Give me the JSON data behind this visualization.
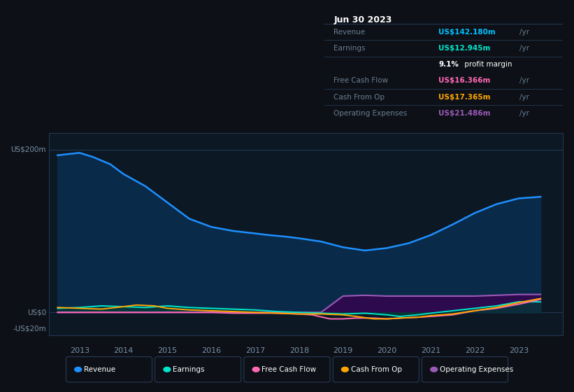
{
  "background_color": "#0d1117",
  "plot_bg_color": "#0c1824",
  "grid_color": "#1e3050",
  "title_box": {
    "date": "Jun 30 2023",
    "rows": [
      {
        "label": "Revenue",
        "value": "US$142.180m",
        "value_color": "#00bfff",
        "suffix": " /yr",
        "extra": null
      },
      {
        "label": "Earnings",
        "value": "US$12.945m",
        "value_color": "#00e5cc",
        "suffix": " /yr",
        "extra": "9.1% profit margin"
      },
      {
        "label": "Free Cash Flow",
        "value": "US$16.366m",
        "value_color": "#ff69b4",
        "suffix": " /yr",
        "extra": null
      },
      {
        "label": "Cash From Op",
        "value": "US$17.365m",
        "value_color": "#ffa500",
        "suffix": " /yr",
        "extra": null
      },
      {
        "label": "Operating Expenses",
        "value": "US$21.486m",
        "value_color": "#9b59b6",
        "suffix": " /yr",
        "extra": null
      }
    ]
  },
  "ylabel_top": "US$200m",
  "ylabel_zero": "US$0",
  "ylabel_neg": "-US$20m",
  "x_ticks": [
    2013,
    2014,
    2015,
    2016,
    2017,
    2018,
    2019,
    2020,
    2021,
    2022,
    2023
  ],
  "xlim": [
    2012.3,
    2024.0
  ],
  "ylim": [
    -28,
    220
  ],
  "series": {
    "Revenue": {
      "color": "#1e90ff",
      "fill_above": "#0a2a50",
      "x": [
        2012.5,
        2013.0,
        2013.3,
        2013.7,
        2014.0,
        2014.5,
        2015.0,
        2015.5,
        2016.0,
        2016.5,
        2017.0,
        2017.3,
        2017.7,
        2018.0,
        2018.5,
        2019.0,
        2019.5,
        2020.0,
        2020.5,
        2021.0,
        2021.5,
        2022.0,
        2022.5,
        2023.0,
        2023.5
      ],
      "y": [
        193,
        196,
        191,
        182,
        170,
        155,
        135,
        115,
        105,
        100,
        97,
        95,
        93,
        91,
        87,
        80,
        76,
        79,
        85,
        95,
        108,
        122,
        133,
        140,
        142
      ]
    },
    "Earnings": {
      "color": "#00e5cc",
      "fill_color": "#003d35",
      "x": [
        2012.5,
        2013.0,
        2013.5,
        2014.0,
        2014.5,
        2015.0,
        2015.5,
        2016.0,
        2016.5,
        2017.0,
        2017.5,
        2018.0,
        2018.5,
        2019.0,
        2019.5,
        2020.0,
        2020.3,
        2020.7,
        2021.0,
        2021.5,
        2022.0,
        2022.5,
        2023.0,
        2023.5
      ],
      "y": [
        5,
        6,
        8,
        7,
        6,
        8,
        6,
        5,
        4,
        3,
        1,
        0,
        -1,
        -2,
        -1,
        -3,
        -5,
        -3,
        -1,
        2,
        5,
        8,
        13,
        13
      ]
    },
    "FreeCashFlow": {
      "color": "#ff69b4",
      "x": [
        2012.5,
        2013.0,
        2013.5,
        2014.0,
        2014.5,
        2015.0,
        2015.5,
        2016.0,
        2016.5,
        2017.0,
        2017.5,
        2018.0,
        2018.3,
        2018.7,
        2019.0,
        2019.3,
        2019.7,
        2020.0,
        2020.3,
        2020.7,
        2021.0,
        2021.5,
        2022.0,
        2022.5,
        2023.0,
        2023.5
      ],
      "y": [
        0,
        0,
        0,
        0,
        0,
        0,
        0,
        0,
        -1,
        -1,
        -1,
        -2,
        -3,
        -8,
        -8,
        -7,
        -7,
        -8,
        -7,
        -6,
        -5,
        -3,
        2,
        5,
        10,
        16
      ]
    },
    "CashFromOp": {
      "color": "#ffa500",
      "x": [
        2012.5,
        2013.0,
        2013.5,
        2014.0,
        2014.3,
        2014.7,
        2015.0,
        2015.5,
        2016.0,
        2016.5,
        2017.0,
        2017.5,
        2018.0,
        2018.5,
        2019.0,
        2019.3,
        2019.7,
        2020.0,
        2020.3,
        2020.7,
        2021.0,
        2021.5,
        2022.0,
        2022.5,
        2023.0,
        2023.5
      ],
      "y": [
        6,
        5,
        4,
        7,
        9,
        8,
        5,
        3,
        2,
        1,
        0,
        -1,
        -2,
        -2,
        -3,
        -5,
        -8,
        -8,
        -7,
        -6,
        -4,
        -2,
        2,
        6,
        12,
        17
      ]
    },
    "OperatingExpenses": {
      "color": "#9b59b6",
      "fill_color": "#2d0a4e",
      "x": [
        2012.5,
        2013.0,
        2013.5,
        2014.0,
        2014.5,
        2015.0,
        2015.5,
        2016.0,
        2016.5,
        2017.0,
        2017.5,
        2018.0,
        2018.5,
        2019.0,
        2019.5,
        2020.0,
        2020.5,
        2021.0,
        2021.5,
        2022.0,
        2022.5,
        2023.0,
        2023.5
      ],
      "y": [
        0,
        0,
        0,
        0,
        0,
        0,
        0,
        0,
        0,
        0,
        0,
        0,
        0,
        20,
        21,
        20,
        20,
        20,
        20,
        20,
        21,
        22,
        22
      ]
    }
  },
  "legend": [
    {
      "label": "Revenue",
      "color": "#1e90ff"
    },
    {
      "label": "Earnings",
      "color": "#00e5cc"
    },
    {
      "label": "Free Cash Flow",
      "color": "#ff69b4"
    },
    {
      "label": "Cash From Op",
      "color": "#ffa500"
    },
    {
      "label": "Operating Expenses",
      "color": "#9b59b6"
    }
  ]
}
